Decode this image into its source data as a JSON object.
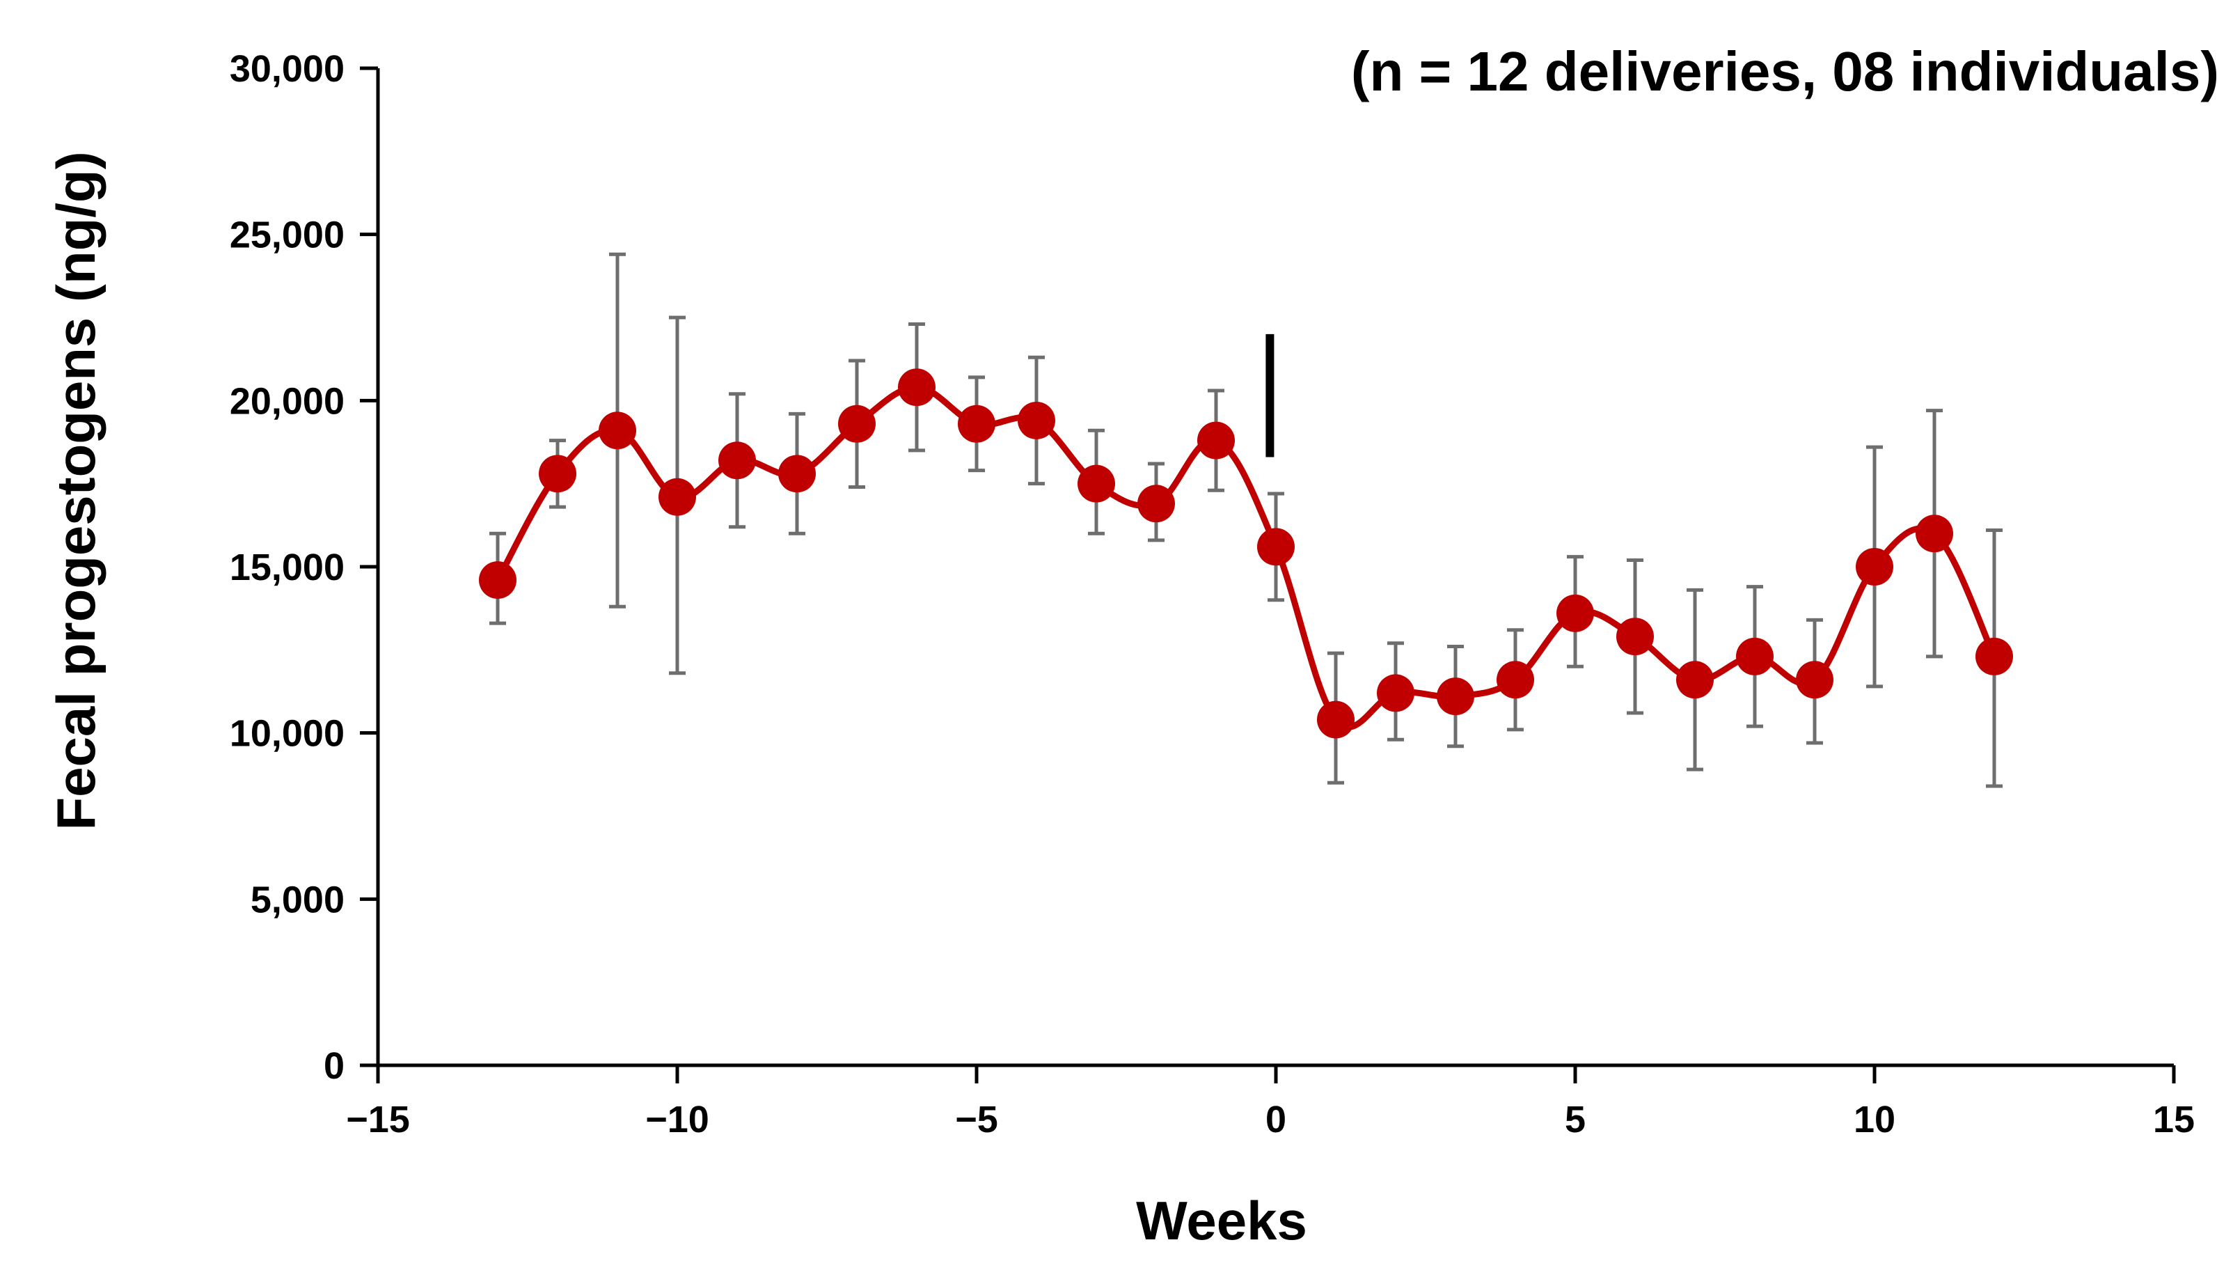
{
  "chart_data": {
    "type": "line",
    "title": "",
    "xlabel": "Weeks",
    "ylabel": "Fecal progestogens (ng/g)",
    "annotation": "(n = 12 deliveries, 08 individuals)",
    "xlim": [
      -15,
      15
    ],
    "ylim": [
      0,
      30000
    ],
    "x_ticks": [
      -15,
      -10,
      -5,
      0,
      5,
      10,
      15
    ],
    "x_tick_labels": [
      "−15",
      "−10",
      "−5",
      "0",
      "5",
      "10",
      "15"
    ],
    "y_ticks": [
      0,
      5000,
      10000,
      15000,
      20000,
      25000,
      30000
    ],
    "y_tick_labels": [
      "0",
      "5,000",
      "10,000",
      "15,000",
      "20,000",
      "25,000",
      "30,000"
    ],
    "grid": false,
    "legend": "none",
    "line_color": "#C00000",
    "errorbar_color": "#6E6E6E",
    "marker_line": {
      "x": -0.1,
      "y_from": 18300,
      "y_to": 22000,
      "color": "#000000"
    },
    "series": [
      {
        "x": [
          -13,
          -12,
          -11,
          -10,
          -9,
          -8,
          -7,
          -6,
          -5,
          -4,
          -3,
          -2,
          -1,
          0,
          1,
          2,
          3,
          4,
          5,
          6,
          7,
          8,
          9,
          10,
          11,
          12
        ],
        "values": [
          14600,
          17800,
          19100,
          17100,
          18200,
          17800,
          19300,
          20400,
          19300,
          19400,
          17500,
          16900,
          18800,
          15600,
          10400,
          11200,
          11100,
          11600,
          13600,
          12900,
          11600,
          12300,
          11600,
          15000,
          16000,
          12300
        ],
        "err_low": [
          13300,
          16800,
          13800,
          11800,
          16200,
          16000,
          17400,
          18500,
          17900,
          17500,
          16000,
          15800,
          17300,
          14000,
          8500,
          9800,
          9600,
          10100,
          12000,
          10600,
          8900,
          10200,
          9700,
          11400,
          12300,
          8400
        ],
        "err_high": [
          16000,
          18800,
          24400,
          22500,
          20200,
          19600,
          21200,
          22300,
          20700,
          21300,
          19100,
          18100,
          20300,
          17200,
          12400,
          12700,
          12600,
          13100,
          15300,
          15200,
          14300,
          14400,
          13400,
          18600,
          19700,
          16100
        ]
      }
    ]
  }
}
